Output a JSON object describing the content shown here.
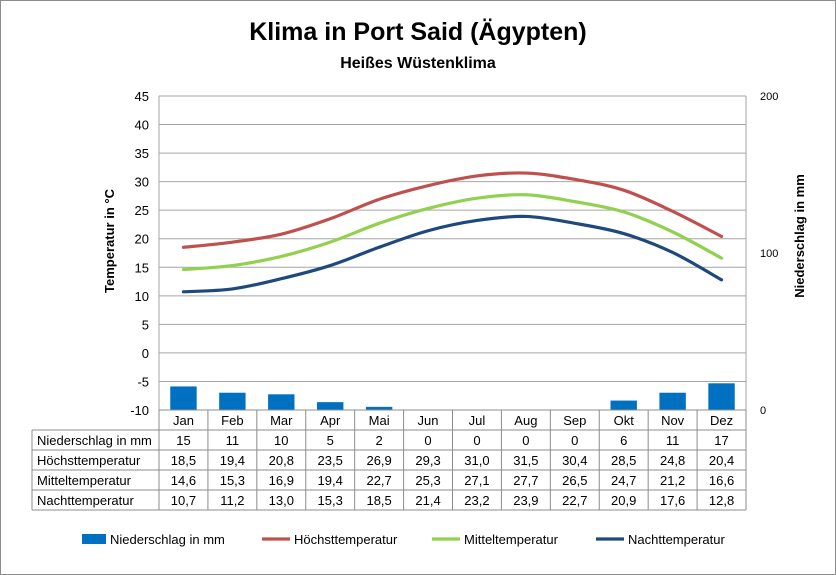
{
  "chart_data": {
    "type": "bar+line",
    "title": "Klima in Port Said (Ägypten)",
    "subtitle": "Heißes Wüstenklima",
    "categories": [
      "Jan",
      "Feb",
      "Mar",
      "Apr",
      "Mai",
      "Jun",
      "Jul",
      "Aug",
      "Sep",
      "Okt",
      "Nov",
      "Dez"
    ],
    "ylabel_left": "Temperatur in °C",
    "ylabel_right": "Niederschlag in mm",
    "ylim_left": [
      -10,
      45
    ],
    "yticks_left": [
      "45",
      "40",
      "35",
      "30",
      "25",
      "20",
      "15",
      "10",
      "5",
      "0",
      "-5",
      "-10"
    ],
    "ylim_right": [
      0,
      200
    ],
    "yticks_right": [
      "200",
      "100",
      "0"
    ],
    "grid": true,
    "legend_position": "bottom",
    "series": [
      {
        "name": "Niederschlag in mm",
        "kind": "bar",
        "axis": "right",
        "color": "#0070C0",
        "values": [
          15,
          11,
          10,
          5,
          2,
          0,
          0,
          0,
          0,
          6,
          11,
          17
        ],
        "labels": [
          "15",
          "11",
          "10",
          "5",
          "2",
          "0",
          "0",
          "0",
          "0",
          "6",
          "11",
          "17"
        ]
      },
      {
        "name": "Höchsttemperatur",
        "kind": "line",
        "axis": "left",
        "color": "#C0504D",
        "values": [
          18.5,
          19.4,
          20.8,
          23.5,
          26.9,
          29.3,
          31.0,
          31.5,
          30.4,
          28.5,
          24.8,
          20.4
        ],
        "labels": [
          "18,5",
          "19,4",
          "20,8",
          "23,5",
          "26,9",
          "29,3",
          "31,0",
          "31,5",
          "30,4",
          "28,5",
          "24,8",
          "20,4"
        ]
      },
      {
        "name": "Mitteltemperatur",
        "kind": "line",
        "axis": "left",
        "color": "#92D050",
        "values": [
          14.6,
          15.3,
          16.9,
          19.4,
          22.7,
          25.3,
          27.1,
          27.7,
          26.5,
          24.7,
          21.2,
          16.6
        ],
        "labels": [
          "14,6",
          "15,3",
          "16,9",
          "19,4",
          "22,7",
          "25,3",
          "27,1",
          "27,7",
          "26,5",
          "24,7",
          "21,2",
          "16,6"
        ]
      },
      {
        "name": "Nachttemperatur",
        "kind": "line",
        "axis": "left",
        "color": "#1F497D",
        "values": [
          10.7,
          11.2,
          13.0,
          15.3,
          18.5,
          21.4,
          23.2,
          23.9,
          22.7,
          20.9,
          17.6,
          12.8
        ],
        "labels": [
          "10,7",
          "11,2",
          "13,0",
          "15,3",
          "18,5",
          "21,4",
          "23,2",
          "23,9",
          "22,7",
          "20,9",
          "17,6",
          "12,8"
        ]
      }
    ]
  }
}
